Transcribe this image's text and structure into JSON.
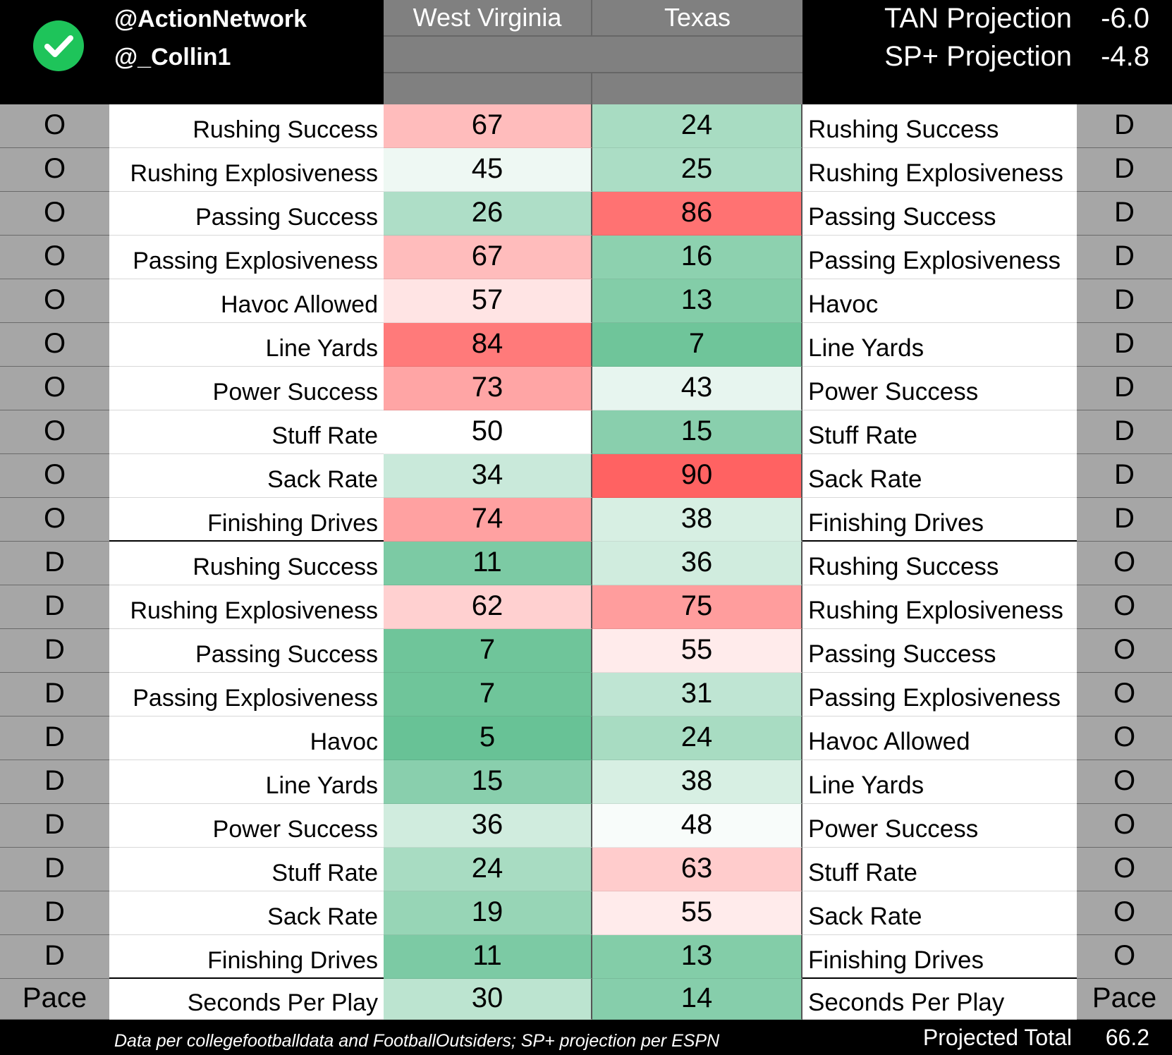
{
  "header": {
    "handles": [
      "@ActionNetwork",
      "@_Collin1"
    ],
    "team_left": "West Virginia",
    "team_right": "Texas",
    "projections": [
      {
        "label": "TAN Projection",
        "value": "-6.0"
      },
      {
        "label": "SP+ Projection",
        "value": "-4.8"
      }
    ],
    "icon": "check-circle-icon",
    "icon_color": "#1ec45a"
  },
  "rows": [
    {
      "side_left": "O",
      "label_left": "Rushing Success",
      "wv": 67,
      "tx": 24,
      "label_right": "Rushing Success",
      "side_right": "D"
    },
    {
      "side_left": "O",
      "label_left": "Rushing Explosiveness",
      "wv": 45,
      "tx": 25,
      "label_right": "Rushing Explosiveness",
      "side_right": "D"
    },
    {
      "side_left": "O",
      "label_left": "Passing Success",
      "wv": 26,
      "tx": 86,
      "label_right": "Passing Success",
      "side_right": "D"
    },
    {
      "side_left": "O",
      "label_left": "Passing Explosiveness",
      "wv": 67,
      "tx": 16,
      "label_right": "Passing Explosiveness",
      "side_right": "D"
    },
    {
      "side_left": "O",
      "label_left": "Havoc Allowed",
      "wv": 57,
      "tx": 13,
      "label_right": "Havoc",
      "side_right": "D"
    },
    {
      "side_left": "O",
      "label_left": "Line Yards",
      "wv": 84,
      "tx": 7,
      "label_right": "Line Yards",
      "side_right": "D"
    },
    {
      "side_left": "O",
      "label_left": "Power Success",
      "wv": 73,
      "tx": 43,
      "label_right": "Power Success",
      "side_right": "D"
    },
    {
      "side_left": "O",
      "label_left": "Stuff Rate",
      "wv": 50,
      "tx": 15,
      "label_right": "Stuff Rate",
      "side_right": "D"
    },
    {
      "side_left": "O",
      "label_left": "Sack Rate",
      "wv": 34,
      "tx": 90,
      "label_right": "Sack Rate",
      "side_right": "D"
    },
    {
      "side_left": "O",
      "label_left": "Finishing Drives",
      "wv": 74,
      "tx": 38,
      "label_right": "Finishing Drives",
      "side_right": "D"
    },
    {
      "side_left": "D",
      "label_left": "Rushing Success",
      "wv": 11,
      "tx": 36,
      "label_right": "Rushing Success",
      "side_right": "O"
    },
    {
      "side_left": "D",
      "label_left": "Rushing Explosiveness",
      "wv": 62,
      "tx": 75,
      "label_right": "Rushing Explosiveness",
      "side_right": "O"
    },
    {
      "side_left": "D",
      "label_left": "Passing Success",
      "wv": 7,
      "tx": 55,
      "label_right": "Passing Success",
      "side_right": "O"
    },
    {
      "side_left": "D",
      "label_left": "Passing Explosiveness",
      "wv": 7,
      "tx": 31,
      "label_right": "Passing Explosiveness",
      "side_right": "O"
    },
    {
      "side_left": "D",
      "label_left": "Havoc",
      "wv": 5,
      "tx": 24,
      "label_right": "Havoc Allowed",
      "side_right": "O"
    },
    {
      "side_left": "D",
      "label_left": "Line Yards",
      "wv": 15,
      "tx": 38,
      "label_right": "Line Yards",
      "side_right": "O"
    },
    {
      "side_left": "D",
      "label_left": "Power Success",
      "wv": 36,
      "tx": 48,
      "label_right": "Power Success",
      "side_right": "O"
    },
    {
      "side_left": "D",
      "label_left": "Stuff Rate",
      "wv": 24,
      "tx": 63,
      "label_right": "Stuff Rate",
      "side_right": "O"
    },
    {
      "side_left": "D",
      "label_left": "Sack Rate",
      "wv": 19,
      "tx": 55,
      "label_right": "Sack Rate",
      "side_right": "O"
    },
    {
      "side_left": "D",
      "label_left": "Finishing Drives",
      "wv": 11,
      "tx": 13,
      "label_right": "Finishing Drives",
      "side_right": "O"
    },
    {
      "side_left": "Pace",
      "label_left": "Seconds Per Play",
      "wv": 30,
      "tx": 14,
      "label_right": "Seconds Per Play",
      "side_right": "Pace"
    }
  ],
  "footer": {
    "note": "Data per collegefootballdata and FootballOutsiders; SP+ projection per ESPN",
    "total_label": "Projected Total",
    "total_value": "66.2"
  },
  "colors": {
    "low": "#57bb8a",
    "mid": "#ffffff",
    "high": "#ff3b3b"
  }
}
